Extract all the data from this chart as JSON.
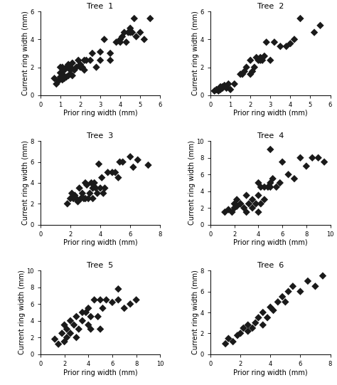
{
  "trees": [
    {
      "title": "Tree  1",
      "xlabel": "Prior ring width (mm)",
      "ylabel": "Current ring width (mm)",
      "xlim": [
        0,
        6
      ],
      "ylim": [
        0,
        6
      ],
      "xticks": [
        0,
        1,
        2,
        3,
        4,
        5,
        6
      ],
      "yticks": [
        0,
        2,
        4,
        6
      ],
      "x": [
        0.7,
        0.8,
        0.9,
        1.0,
        1.0,
        1.0,
        1.1,
        1.1,
        1.1,
        1.2,
        1.2,
        1.3,
        1.3,
        1.4,
        1.4,
        1.5,
        1.5,
        1.5,
        1.6,
        1.6,
        1.7,
        1.8,
        1.9,
        2.0,
        2.0,
        2.1,
        2.2,
        2.2,
        2.3,
        2.5,
        2.6,
        2.8,
        3.0,
        3.0,
        3.2,
        3.5,
        3.5,
        3.8,
        4.0,
        4.0,
        4.1,
        4.2,
        4.3,
        4.4,
        4.5,
        4.5,
        4.6,
        4.7,
        4.8,
        5.0,
        5.2,
        5.5
      ],
      "y": [
        1.2,
        0.8,
        1.0,
        1.3,
        1.6,
        2.0,
        1.1,
        1.5,
        2.0,
        1.2,
        1.8,
        1.3,
        2.0,
        1.4,
        2.2,
        1.5,
        2.0,
        1.8,
        1.4,
        2.3,
        1.8,
        2.0,
        2.5,
        2.0,
        2.2,
        2.0,
        2.5,
        1.8,
        2.5,
        2.5,
        3.0,
        2.0,
        3.1,
        2.5,
        4.0,
        3.0,
        2.5,
        3.8,
        3.8,
        4.0,
        4.2,
        4.5,
        3.8,
        4.5,
        4.5,
        4.8,
        4.5,
        5.5,
        4.2,
        4.5,
        4.0,
        5.5
      ]
    },
    {
      "title": "Tree  2",
      "xlabel": "Prior ring width (mm)",
      "ylabel": "Current ring width (mm)",
      "xlim": [
        0,
        6
      ],
      "ylim": [
        0,
        6
      ],
      "xticks": [
        0,
        1,
        2,
        3,
        4,
        5,
        6
      ],
      "yticks": [
        0,
        2,
        4,
        6
      ],
      "x": [
        0.2,
        0.3,
        0.4,
        0.5,
        0.5,
        0.5,
        0.6,
        0.6,
        0.7,
        0.8,
        0.8,
        0.9,
        1.0,
        1.2,
        1.5,
        1.6,
        1.7,
        1.8,
        2.0,
        2.0,
        2.1,
        2.2,
        2.3,
        2.4,
        2.5,
        2.5,
        2.6,
        2.7,
        2.8,
        3.0,
        3.2,
        3.5,
        3.8,
        4.0,
        4.2,
        4.5,
        5.2,
        5.5
      ],
      "y": [
        0.3,
        0.4,
        0.3,
        0.5,
        0.4,
        0.6,
        0.5,
        0.6,
        0.7,
        0.5,
        0.6,
        0.8,
        0.4,
        0.8,
        1.5,
        1.5,
        1.7,
        2.0,
        1.5,
        2.5,
        1.7,
        2.0,
        2.7,
        2.5,
        2.5,
        2.7,
        2.5,
        2.8,
        3.8,
        2.5,
        3.8,
        3.5,
        3.5,
        3.7,
        4.0,
        5.5,
        4.5,
        5.0
      ]
    },
    {
      "title": "Tree  3",
      "xlabel": "Prior ring width (mm)",
      "ylabel": "Current ring width (mm)",
      "xlim": [
        0,
        8
      ],
      "ylim": [
        0,
        8
      ],
      "xticks": [
        0,
        2,
        4,
        6,
        8
      ],
      "yticks": [
        0,
        2,
        4,
        6,
        8
      ],
      "x": [
        1.8,
        2.0,
        2.1,
        2.2,
        2.3,
        2.4,
        2.5,
        2.6,
        2.7,
        2.8,
        2.9,
        3.0,
        3.0,
        3.1,
        3.2,
        3.3,
        3.4,
        3.5,
        3.5,
        3.6,
        3.7,
        3.8,
        3.9,
        4.0,
        4.1,
        4.2,
        4.3,
        4.5,
        4.8,
        5.0,
        5.2,
        5.3,
        5.5,
        6.0,
        6.2,
        6.5,
        7.2
      ],
      "y": [
        2.0,
        2.5,
        3.0,
        2.5,
        2.8,
        2.5,
        2.2,
        3.5,
        2.5,
        3.0,
        2.5,
        4.0,
        2.5,
        3.8,
        2.5,
        3.0,
        4.0,
        3.5,
        2.5,
        4.0,
        3.5,
        3.0,
        5.8,
        3.5,
        4.5,
        3.0,
        3.5,
        5.0,
        5.0,
        5.0,
        4.5,
        6.0,
        6.0,
        6.5,
        5.5,
        6.2,
        5.7
      ]
    },
    {
      "title": "Tree  4",
      "xlabel": "Prior ring width (mm)",
      "ylabel": "Current ring width (mm)",
      "xlim": [
        0,
        10
      ],
      "ylim": [
        0,
        10
      ],
      "xticks": [
        0,
        2,
        4,
        6,
        8,
        10
      ],
      "yticks": [
        0,
        2,
        4,
        6,
        8,
        10
      ],
      "x": [
        1.2,
        1.5,
        1.8,
        2.0,
        2.0,
        2.2,
        2.2,
        2.5,
        2.5,
        2.8,
        3.0,
        3.0,
        3.2,
        3.5,
        3.5,
        3.8,
        4.0,
        4.0,
        4.0,
        4.2,
        4.2,
        4.5,
        4.5,
        4.8,
        5.0,
        5.0,
        5.0,
        5.2,
        5.5,
        5.8,
        6.0,
        6.5,
        7.0,
        7.5,
        8.0,
        8.5,
        9.0,
        9.5
      ],
      "y": [
        1.5,
        1.8,
        1.5,
        2.0,
        2.5,
        2.2,
        3.0,
        2.5,
        2.5,
        2.0,
        1.5,
        3.5,
        2.5,
        2.0,
        3.0,
        2.5,
        1.5,
        3.5,
        5.0,
        2.5,
        4.5,
        3.0,
        4.5,
        4.5,
        4.5,
        5.0,
        9.0,
        5.5,
        4.5,
        5.0,
        7.5,
        6.0,
        5.5,
        8.0,
        7.0,
        8.0,
        8.0,
        7.5
      ]
    },
    {
      "title": "Tree  5",
      "xlabel": "Prior ring width (mm)",
      "ylabel": "Current ring width (mm)",
      "xlim": [
        0,
        10
      ],
      "ylim": [
        0,
        10
      ],
      "xticks": [
        0,
        2,
        4,
        6,
        8,
        10
      ],
      "yticks": [
        0,
        2,
        4,
        6,
        8,
        10
      ],
      "x": [
        1.2,
        1.5,
        1.8,
        2.0,
        2.0,
        2.2,
        2.2,
        2.5,
        2.5,
        2.8,
        3.0,
        3.0,
        3.2,
        3.5,
        3.5,
        3.8,
        4.0,
        4.0,
        4.2,
        4.2,
        4.5,
        4.8,
        5.0,
        5.0,
        5.2,
        5.5,
        6.0,
        6.5,
        6.5,
        7.0,
        7.5,
        8.0
      ],
      "y": [
        1.8,
        1.2,
        2.5,
        1.5,
        3.5,
        2.0,
        3.0,
        2.5,
        4.0,
        3.5,
        2.0,
        4.5,
        3.0,
        4.0,
        5.0,
        5.0,
        3.5,
        5.5,
        3.0,
        4.5,
        6.5,
        4.5,
        3.0,
        6.5,
        5.5,
        6.5,
        6.2,
        6.5,
        7.8,
        5.5,
        6.0,
        6.5
      ]
    },
    {
      "title": "Tree  6",
      "xlabel": "Prior ring width (mm)",
      "ylabel": "Current ring width (mm)",
      "xlim": [
        0,
        8
      ],
      "ylim": [
        0,
        8
      ],
      "xticks": [
        0,
        2,
        4,
        6,
        8
      ],
      "yticks": [
        0,
        2,
        4,
        6,
        8
      ],
      "x": [
        1.0,
        1.2,
        1.5,
        1.8,
        2.0,
        2.2,
        2.5,
        2.5,
        2.8,
        3.0,
        3.2,
        3.5,
        3.5,
        3.8,
        4.0,
        4.2,
        4.5,
        4.8,
        5.0,
        5.2,
        5.5,
        6.0,
        6.5,
        7.0,
        7.5
      ],
      "y": [
        1.0,
        1.5,
        1.2,
        1.8,
        2.0,
        2.5,
        2.2,
        2.8,
        2.5,
        3.0,
        3.5,
        2.8,
        4.0,
        3.5,
        4.5,
        4.2,
        5.0,
        5.5,
        5.0,
        6.0,
        6.5,
        6.0,
        7.0,
        6.5,
        7.5
      ]
    }
  ],
  "marker_color": "#1a1a1a",
  "marker_size": 28,
  "marker_style": "D",
  "title_fontsize": 8,
  "label_fontsize": 7,
  "tick_fontsize": 6,
  "fig_bgcolor": "white"
}
